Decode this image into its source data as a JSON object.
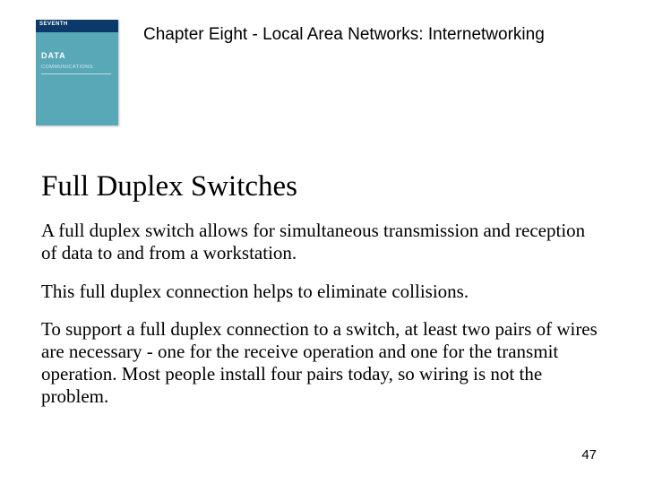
{
  "header": {
    "chapter_title": "Chapter Eight - Local Area Networks: Internetworking",
    "book": {
      "band_label": "SEVENTH",
      "title": "DATA",
      "subtitle": "COMMUNICATIONS",
      "cover_color": "#59a8b8",
      "band_color": "#0b3a6a"
    }
  },
  "content": {
    "heading": "Full Duplex Switches",
    "paragraphs": [
      "A full duplex switch allows for simultaneous transmission and reception of data to and from a workstation.",
      "This full duplex connection helps to eliminate collisions.",
      "To support a full duplex connection to a switch, at least two pairs of wires are necessary - one for the receive operation and one for the transmit operation.  Most people install four pairs today, so wiring is not the problem."
    ]
  },
  "page_number": "47",
  "typography": {
    "chapter_title_fontsize": 19,
    "heading_fontsize": 33,
    "body_fontsize": 21,
    "page_num_fontsize": 15
  },
  "colors": {
    "background": "#ffffff",
    "text": "#000000"
  }
}
